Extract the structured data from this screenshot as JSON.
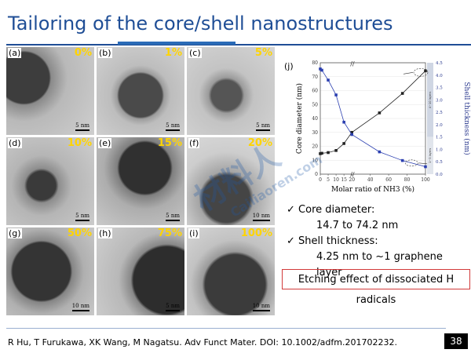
{
  "title": "Tailoring of the core/shell nanostructures",
  "panels": [
    {
      "label": "(a)",
      "percent": "0%",
      "scale": "5 nm"
    },
    {
      "label": "(b)",
      "percent": "1%",
      "scale": "5 nm"
    },
    {
      "label": "(c)",
      "percent": "5%",
      "scale": "5 nm"
    },
    {
      "label": "(d)",
      "percent": "10%",
      "scale": "5 nm"
    },
    {
      "label": "(e)",
      "percent": "15%",
      "scale": "5 nm"
    },
    {
      "label": "(f)",
      "percent": "20%",
      "scale": "10 nm"
    },
    {
      "label": "(g)",
      "percent": "50%",
      "scale": "10 nm"
    },
    {
      "label": "(h)",
      "percent": "75%",
      "scale": "5 nm"
    },
    {
      "label": "(i)",
      "percent": "100%",
      "scale": "10 nm"
    }
  ],
  "chart_data": {
    "type": "line",
    "panel_label": "(j)",
    "xlabel": "Molar ratio of NH3 (%)",
    "ylabel_left": "Core diameter (nm)",
    "ylabel_right": "Shell thickness (nm)",
    "right_band_labels": [
      "4~10 layers",
      "1~3 layers"
    ],
    "xlim": [
      0,
      100
    ],
    "x_ticks": [
      0,
      5,
      10,
      15,
      20,
      40,
      60,
      80,
      100
    ],
    "ylim_left": [
      0,
      80
    ],
    "y_ticks_left": [
      0,
      10,
      20,
      30,
      40,
      50,
      60,
      70,
      80
    ],
    "ylim_right": [
      0,
      4.5
    ],
    "y_ticks_right": [
      "0.0",
      "0.5",
      "1.0",
      "1.5",
      "2.0",
      "2.5",
      "3.0",
      "3.5",
      "4.0",
      "4.5"
    ],
    "series": [
      {
        "axis": "left",
        "x": [
          0,
          1,
          5,
          10,
          15,
          20,
          50,
          75,
          100
        ],
        "y": [
          14.7,
          15.0,
          15.5,
          17.0,
          22.0,
          30.0,
          44.0,
          58.0,
          74.2
        ]
      },
      {
        "axis": "right",
        "x": [
          0,
          1,
          5,
          10,
          15,
          20,
          50,
          75,
          100
        ],
        "y": [
          4.25,
          4.2,
          3.8,
          3.2,
          2.1,
          1.6,
          0.9,
          0.55,
          0.3
        ]
      }
    ]
  },
  "bullets": [
    {
      "check": "✓",
      "head": "Core diameter:",
      "detail": "14.7 to 74.2 nm"
    },
    {
      "check": "✓",
      "head": "Shell thickness:",
      "detail": "4.25 nm to ~1 graphene layer"
    }
  ],
  "etching_note": "Etching effect of dissociated H radicals",
  "citation": "R Hu, T Furukawa, XK Wang, M Nagatsu. Adv Funct Mater. DOI: 10.1002/adfm.201702232.",
  "page_number": "38",
  "watermark": {
    "cn": "材料人",
    "en": "Cailiaoren.com"
  }
}
